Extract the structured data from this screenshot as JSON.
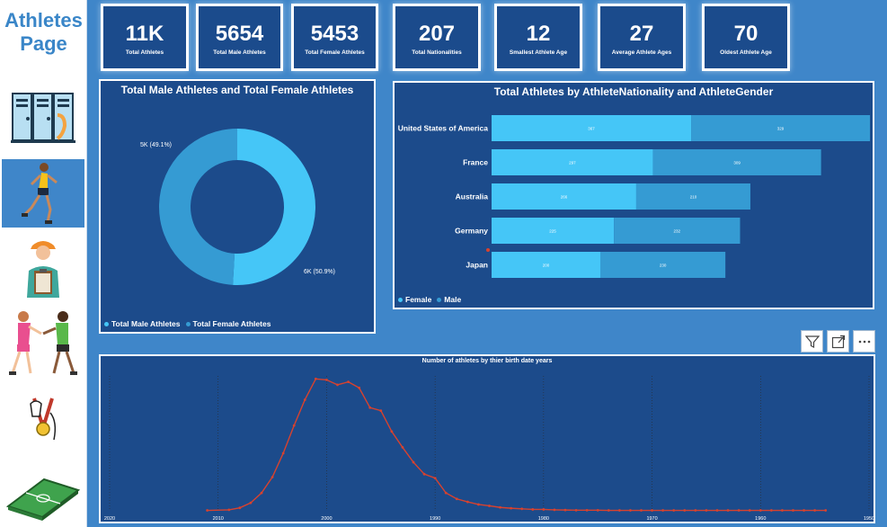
{
  "sidebar": {
    "title_line1": "Athletes",
    "title_line2": "Page",
    "items": [
      {
        "name": "lockers"
      },
      {
        "name": "runner"
      },
      {
        "name": "coach"
      },
      {
        "name": "teammates"
      },
      {
        "name": "medal"
      },
      {
        "name": "football-field"
      }
    ]
  },
  "kpis": [
    {
      "value": "11K",
      "label": "Total Athletes"
    },
    {
      "value": "5654",
      "label": "Total Male Athletes"
    },
    {
      "value": "5453",
      "label": "Total Female Athletes"
    },
    {
      "value": "207",
      "label": "Total Nationalities"
    },
    {
      "value": "12",
      "label": "Smallest Athlete Age"
    },
    {
      "value": "27",
      "label": "Average Athlete Ages"
    },
    {
      "value": "70",
      "label": "Oldest Athlete Age"
    }
  ],
  "colors": {
    "page_bg": "#3f86c9",
    "panel_bg": "#1c4b8b",
    "light_blue": "#45c6f7",
    "mid_blue": "#359bd3",
    "line_red": "#d8422e"
  },
  "chart_data": [
    {
      "type": "pie",
      "title": "Total Male Athletes and Total Female Athletes",
      "donut": true,
      "slices": [
        {
          "name": "Total Male Athletes",
          "value": 50.9,
          "label": "6K (50.9%)"
        },
        {
          "name": "Total Female Athletes",
          "value": 49.1,
          "label": "5K (49.1%)"
        }
      ],
      "legend": [
        "Total Male Athletes",
        "Total Female Athletes"
      ]
    },
    {
      "type": "bar",
      "orientation": "horizontal",
      "stacked": true,
      "title": "Total Athletes by AthleteNationality and AthleteGender",
      "categories": [
        "United States of America",
        "France",
        "Australia",
        "Germany",
        "Japan"
      ],
      "series": [
        {
          "name": "Female",
          "values": [
            367,
            297,
            266,
            225,
            200
          ]
        },
        {
          "name": "Male",
          "values": [
            329,
            309,
            210,
            232,
            230
          ]
        }
      ],
      "value_labels": [
        [
          "367",
          "297",
          "266",
          "225",
          "200"
        ],
        [
          "329",
          "309",
          "210",
          "232",
          "230"
        ]
      ],
      "legend": [
        "Female",
        "Male"
      ]
    },
    {
      "type": "line",
      "title": "Number of athletes by thier birth date years",
      "x_tick_labels": [
        "2020",
        "2010",
        "2000",
        "1990",
        "1980",
        "1970",
        "1960",
        "1950"
      ],
      "x_ticks": [
        2020,
        2010,
        2000,
        1990,
        1980,
        1970,
        1960,
        1950
      ],
      "xlim": [
        2020,
        1950
      ],
      "ylim": [
        0,
        680
      ],
      "x": [
        2011,
        2009,
        2008,
        2007,
        2006,
        2005,
        2004,
        2003,
        2002,
        2001,
        2000,
        1999,
        1998,
        1997,
        1996,
        1995,
        1994,
        1993,
        1992,
        1991,
        1990,
        1989,
        1988,
        1987,
        1986,
        1985,
        1984,
        1983,
        1982,
        1981,
        1980,
        1979,
        1978,
        1977,
        1976,
        1975,
        1974,
        1973,
        1972,
        1971,
        1970,
        1969,
        1968,
        1967,
        1966,
        1965,
        1964,
        1963,
        1962,
        1961,
        1960,
        1959,
        1958,
        1957,
        1956,
        1955,
        1954
      ],
      "y": [
        2,
        5,
        15,
        40,
        90,
        170,
        290,
        430,
        560,
        665,
        660,
        635,
        650,
        620,
        520,
        505,
        400,
        320,
        245,
        185,
        165,
        90,
        60,
        45,
        32,
        25,
        17,
        13,
        10,
        7,
        7,
        5,
        4,
        3,
        3,
        3,
        2,
        2,
        2,
        2,
        2,
        2,
        2,
        2,
        2,
        2,
        2,
        2,
        2,
        2,
        2,
        2,
        2,
        2,
        2,
        2,
        2
      ]
    }
  ]
}
